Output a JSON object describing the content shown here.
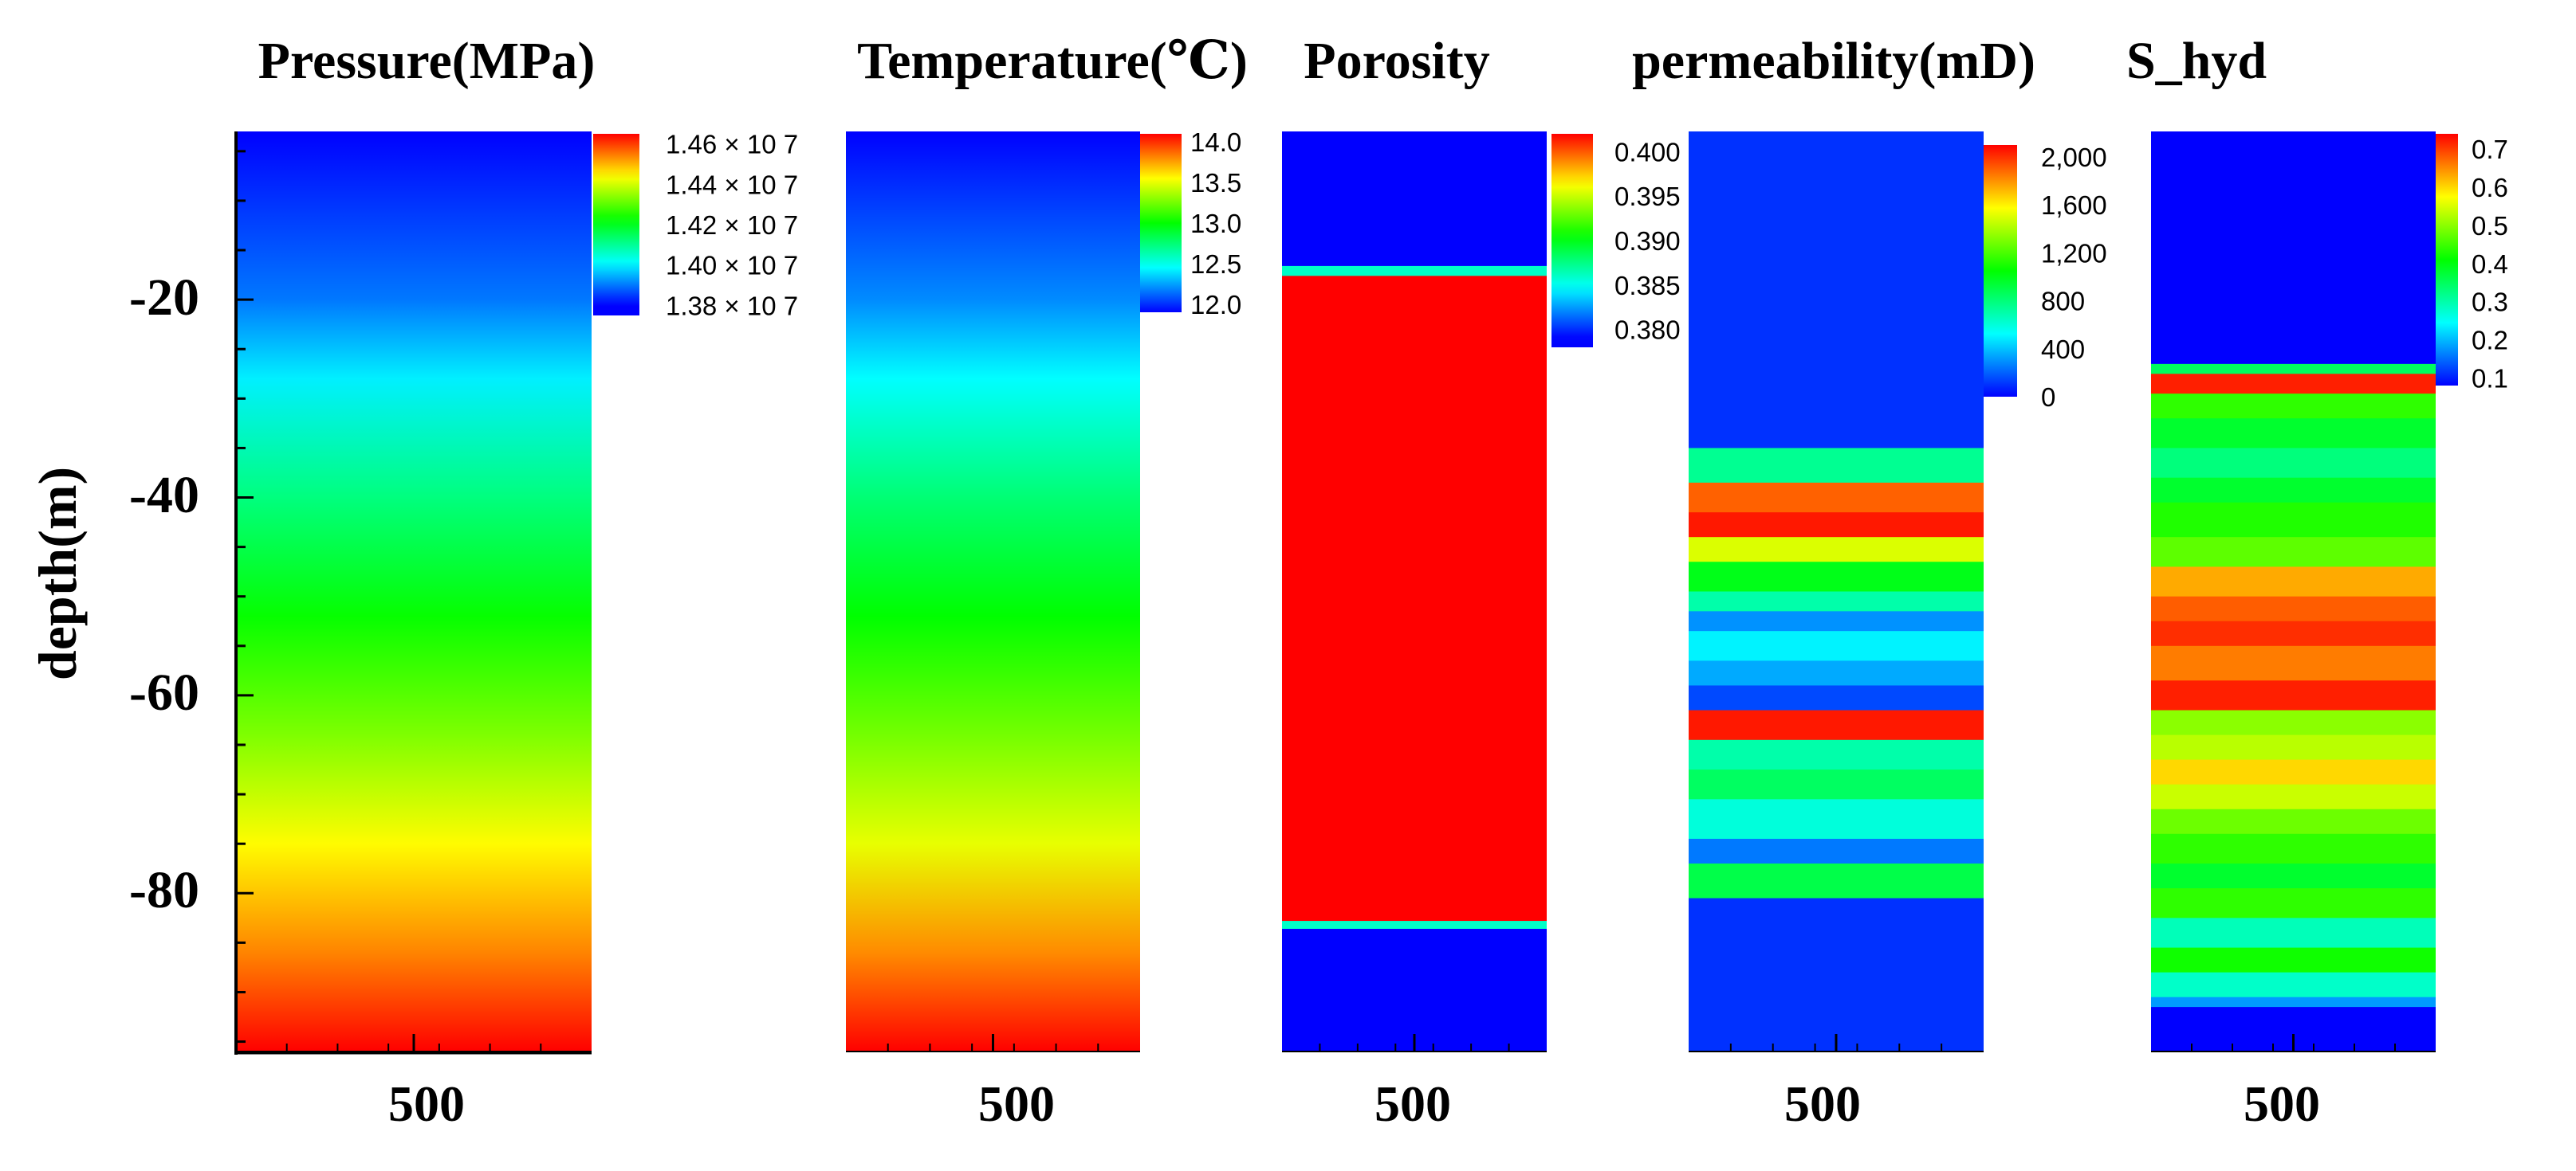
{
  "figure": {
    "ylabel": "depth(m)",
    "y_ticks": [
      "-20",
      "-40",
      "-60",
      "-80"
    ]
  },
  "chart_data": [
    {
      "type": "heatmap",
      "title": "Pressure(MPa)",
      "x_tick": "500",
      "ylabel": "depth(m)",
      "ylim": [
        -96,
        -3
      ],
      "y_ticks": [
        -20,
        -40,
        -60,
        -80
      ],
      "variable": "Pressure",
      "value_range": [
        13800000,
        14650000
      ],
      "profile": {
        "depth": [
          -3,
          -20,
          -28,
          -40,
          -52,
          -64,
          -75,
          -86,
          -96
        ],
        "value": [
          13800000,
          13900000,
          14000000,
          14120000,
          14230000,
          14330000,
          14440000,
          14540000,
          14650000
        ]
      },
      "colorbar": {
        "range": [
          13750000,
          14650000
        ],
        "ticks": [
          13800000,
          14000000,
          14200000,
          14400000,
          14600000
        ],
        "labels": [
          "1.38 × 10 7",
          "1.40 × 10 7",
          "1.42 × 10 7",
          "1.44 × 10 7",
          "1.46 × 10 7"
        ]
      }
    },
    {
      "type": "heatmap",
      "title": "Temperature(℃)",
      "x_tick": "500",
      "ylim": [
        -96,
        -3
      ],
      "variable": "Temperature",
      "value_range": [
        11.9,
        14.1
      ],
      "profile": {
        "depth": [
          -3,
          -20,
          -28,
          -40,
          -52,
          -64,
          -75,
          -86,
          -96
        ],
        "value": [
          11.9,
          12.2,
          12.45,
          12.75,
          13.0,
          13.25,
          13.5,
          13.8,
          14.1
        ]
      },
      "colorbar": {
        "range": [
          11.9,
          14.1
        ],
        "ticks": [
          12.0,
          12.5,
          13.0,
          13.5,
          14.0
        ],
        "labels": [
          "12.0",
          "12.5",
          "13.0",
          "13.5",
          "14.0"
        ]
      }
    },
    {
      "type": "heatmap",
      "title": "Porosity",
      "x_tick": "500",
      "ylim": [
        -96,
        -3
      ],
      "variable": "Porosity",
      "value_range": [
        0.379,
        0.402
      ],
      "layers": [
        {
          "top": -3,
          "bottom": -16.6,
          "value": 0.379
        },
        {
          "top": -16.6,
          "bottom": -17.6,
          "value": 0.386
        },
        {
          "top": -17.6,
          "bottom": -82.8,
          "value": 0.402
        },
        {
          "top": -82.8,
          "bottom": -83.6,
          "value": 0.386
        },
        {
          "top": -83.6,
          "bottom": -96,
          "value": 0.379
        }
      ],
      "colorbar": {
        "range": [
          0.378,
          0.402
        ],
        "ticks": [
          0.38,
          0.385,
          0.39,
          0.395,
          0.4
        ],
        "labels": [
          "0.380",
          "0.385",
          "0.390",
          "0.395",
          "0.400"
        ]
      }
    },
    {
      "type": "heatmap",
      "title": "permeability(mD)",
      "x_tick": "500",
      "ylim": [
        -96,
        -3
      ],
      "variable": "Permeability",
      "value_range": [
        0,
        2100
      ],
      "layers": [
        {
          "top": -3,
          "bottom": -35,
          "value": 100
        },
        {
          "top": -35,
          "bottom": -38.5,
          "value": 750
        },
        {
          "top": -38.5,
          "bottom": -41.5,
          "value": 1900
        },
        {
          "top": -41.5,
          "bottom": -44,
          "value": 2050
        },
        {
          "top": -44,
          "bottom": -46.5,
          "value": 1500
        },
        {
          "top": -46.5,
          "bottom": -49.5,
          "value": 1000
        },
        {
          "top": -49.5,
          "bottom": -51.5,
          "value": 700
        },
        {
          "top": -51.5,
          "bottom": -53.5,
          "value": 300
        },
        {
          "top": -53.5,
          "bottom": -56.5,
          "value": 500
        },
        {
          "top": -56.5,
          "bottom": -59,
          "value": 350
        },
        {
          "top": -59,
          "bottom": -61.5,
          "value": 150
        },
        {
          "top": -61.5,
          "bottom": -64.5,
          "value": 2050
        },
        {
          "top": -64.5,
          "bottom": -67.5,
          "value": 700
        },
        {
          "top": -67.5,
          "bottom": -70.5,
          "value": 850
        },
        {
          "top": -70.5,
          "bottom": -74.5,
          "value": 600
        },
        {
          "top": -74.5,
          "bottom": -77,
          "value": 250
        },
        {
          "top": -77,
          "bottom": -80.5,
          "value": 900
        },
        {
          "top": -80.5,
          "bottom": -96,
          "value": 100
        }
      ],
      "colorbar": {
        "range": [
          0,
          2100
        ],
        "ticks": [
          0,
          400,
          800,
          1200,
          1600,
          2000
        ],
        "labels": [
          "0",
          "400",
          "800",
          "1,200",
          "1,600",
          "2,000"
        ]
      }
    },
    {
      "type": "heatmap",
      "title": "S_hyd",
      "x_tick": "500",
      "ylim": [
        -96,
        -3
      ],
      "variable": "S_hyd",
      "value_range": [
        0.08,
        0.74
      ],
      "layers": [
        {
          "top": -3,
          "bottom": -26.5,
          "value": 0.08
        },
        {
          "top": -26.5,
          "bottom": -27.5,
          "value": 0.35
        },
        {
          "top": -27.5,
          "bottom": -29.5,
          "value": 0.72
        },
        {
          "top": -29.5,
          "bottom": -32,
          "value": 0.44
        },
        {
          "top": -32,
          "bottom": -35,
          "value": 0.38
        },
        {
          "top": -35,
          "bottom": -38,
          "value": 0.33
        },
        {
          "top": -38,
          "bottom": -40.5,
          "value": 0.38
        },
        {
          "top": -40.5,
          "bottom": -44,
          "value": 0.43
        },
        {
          "top": -44,
          "bottom": -47,
          "value": 0.47
        },
        {
          "top": -47,
          "bottom": -50,
          "value": 0.63
        },
        {
          "top": -50,
          "bottom": -52.5,
          "value": 0.68
        },
        {
          "top": -52.5,
          "bottom": -55,
          "value": 0.71
        },
        {
          "top": -55,
          "bottom": -58.5,
          "value": 0.66
        },
        {
          "top": -58.5,
          "bottom": -61.5,
          "value": 0.72
        },
        {
          "top": -61.5,
          "bottom": -64,
          "value": 0.5
        },
        {
          "top": -64,
          "bottom": -66.5,
          "value": 0.53
        },
        {
          "top": -66.5,
          "bottom": -69,
          "value": 0.6
        },
        {
          "top": -69,
          "bottom": -71.5,
          "value": 0.54
        },
        {
          "top": -71.5,
          "bottom": -74,
          "value": 0.48
        },
        {
          "top": -74,
          "bottom": -77,
          "value": 0.44
        },
        {
          "top": -77,
          "bottom": -79.5,
          "value": 0.38
        },
        {
          "top": -79.5,
          "bottom": -82.5,
          "value": 0.44
        },
        {
          "top": -82.5,
          "bottom": -85.5,
          "value": 0.29
        },
        {
          "top": -85.5,
          "bottom": -88,
          "value": 0.42
        },
        {
          "top": -88,
          "bottom": -90.5,
          "value": 0.28
        },
        {
          "top": -90.5,
          "bottom": -91.5,
          "value": 0.18
        },
        {
          "top": -91.5,
          "bottom": -96,
          "value": 0.08
        }
      ],
      "colorbar": {
        "range": [
          0.08,
          0.74
        ],
        "ticks": [
          0.1,
          0.2,
          0.3,
          0.4,
          0.5,
          0.6,
          0.7
        ],
        "labels": [
          "0.1",
          "0.2",
          "0.3",
          "0.4",
          "0.5",
          "0.6",
          "0.7"
        ]
      }
    }
  ]
}
